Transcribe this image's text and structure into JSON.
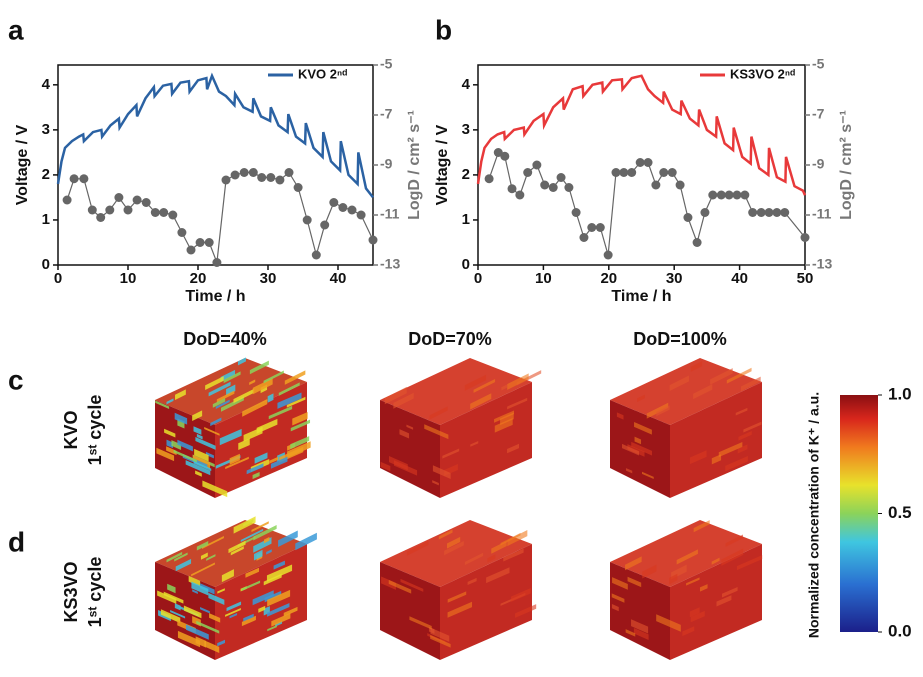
{
  "chart_data": [
    {
      "type": "line",
      "panel_label": "a",
      "xlabel": "Time / h",
      "ylabel": "Voltage / V",
      "y2label": "LogD / cm² s⁻¹",
      "xlim": [
        0,
        45
      ],
      "xticks": [
        0,
        10,
        20,
        30,
        40
      ],
      "ylim": [
        0,
        4.44
      ],
      "yticks": [
        0,
        1,
        2,
        3,
        4
      ],
      "y2lim": [
        -5,
        -13
      ],
      "y2ticks": [
        -5,
        -7,
        -9,
        -11,
        -13
      ],
      "series": [
        {
          "name": "KVO 2ⁿᵈ",
          "type": "line",
          "color": "#2b62a3",
          "x": [
            0,
            0.5,
            1,
            2,
            3,
            3.6,
            3.7,
            5,
            6.2,
            6.3,
            7.5,
            8.7,
            8.8,
            10,
            11.2,
            11.3,
            12.5,
            13.7,
            13.8,
            15,
            16.2,
            16.3,
            17.5,
            18.7,
            18.8,
            20,
            21.2,
            21.3,
            22,
            23,
            24,
            25.2,
            25.3,
            26.5,
            27.8,
            27.9,
            29,
            30.3,
            30.4,
            31.5,
            32.8,
            32.9,
            34,
            35.3,
            35.4,
            36.5,
            37.8,
            37.9,
            39,
            40.3,
            40.4,
            41.5,
            42.8,
            42.9,
            44,
            45
          ],
          "values": [
            1.8,
            2.3,
            2.6,
            2.75,
            2.85,
            2.9,
            2.75,
            2.95,
            3.0,
            2.85,
            3.1,
            3.25,
            3.05,
            3.35,
            3.55,
            3.3,
            3.7,
            3.95,
            3.75,
            3.98,
            4.02,
            3.8,
            4.05,
            4.08,
            3.85,
            4.1,
            4.15,
            3.9,
            4.2,
            3.85,
            3.75,
            3.55,
            3.8,
            3.5,
            3.4,
            3.7,
            3.3,
            3.2,
            3.5,
            3.1,
            2.95,
            3.35,
            2.85,
            2.7,
            3.15,
            2.6,
            2.4,
            2.95,
            2.3,
            2.1,
            2.75,
            2.0,
            1.8,
            2.5,
            1.7,
            1.5
          ]
        },
        {
          "type": "scatter",
          "axis": "y2",
          "color": "#666666",
          "x": [
            1.3,
            2.3,
            3.7,
            4.9,
            6.1,
            7.4,
            8.7,
            10,
            11.3,
            12.6,
            13.9,
            15.1,
            16.4,
            17.7,
            19,
            20.3,
            21.6,
            22.7,
            24,
            25.3,
            26.6,
            27.9,
            29.1,
            30.4,
            31.7,
            33,
            34.3,
            35.6,
            36.9,
            38.1,
            39.4,
            40.7,
            42,
            43.3,
            45
          ],
          "values": [
            -10.4,
            -9.55,
            -9.55,
            -10.8,
            -11.1,
            -10.8,
            -10.3,
            -10.8,
            -10.4,
            -10.5,
            -10.9,
            -10.9,
            -11,
            -11.7,
            -12.4,
            -12.1,
            -12.1,
            -12.9,
            -9.6,
            -9.4,
            -9.3,
            -9.3,
            -9.5,
            -9.5,
            -9.6,
            -9.3,
            -9.9,
            -11.2,
            -12.6,
            -11.4,
            -10.5,
            -10.7,
            -10.8,
            -11,
            -12
          ]
        }
      ]
    },
    {
      "type": "line",
      "panel_label": "b",
      "xlabel": "Time / h",
      "ylabel": "Voltage / V",
      "y2label": "LogD / cm² s⁻¹",
      "xlim": [
        0,
        50
      ],
      "xticks": [
        0,
        10,
        20,
        30,
        40,
        50
      ],
      "ylim": [
        0,
        4.44
      ],
      "yticks": [
        0,
        1,
        2,
        3,
        4
      ],
      "y2lim": [
        -5,
        -13
      ],
      "y2ticks": [
        -5,
        -7,
        -9,
        -11,
        -13
      ],
      "series": [
        {
          "name": "KS3VO 2ⁿᵈ",
          "type": "line",
          "color": "#e8393a",
          "x": [
            0,
            0.5,
            1,
            2,
            3,
            4,
            4.1,
            5.5,
            7,
            7.1,
            8.5,
            10,
            10.1,
            11.5,
            13,
            13.1,
            14.5,
            16,
            16.1,
            17.5,
            19,
            19.1,
            20.5,
            22,
            22.1,
            23.5,
            25,
            26,
            27,
            28.3,
            28.4,
            29.7,
            31,
            31.1,
            32.4,
            33.7,
            33.8,
            35,
            36.4,
            36.5,
            37.7,
            39,
            39.1,
            40.4,
            41.7,
            41.8,
            43,
            44.4,
            44.5,
            45.7,
            47,
            47.1,
            48.4,
            49.7,
            50
          ],
          "values": [
            1.8,
            2.3,
            2.6,
            2.8,
            2.9,
            2.95,
            2.8,
            3.0,
            3.05,
            2.9,
            3.2,
            3.35,
            3.1,
            3.5,
            3.7,
            3.45,
            3.9,
            3.97,
            3.75,
            4.0,
            4.05,
            3.85,
            4.1,
            4.12,
            3.9,
            4.15,
            4.2,
            3.9,
            3.75,
            3.6,
            3.85,
            3.45,
            3.35,
            3.65,
            3.25,
            3.1,
            3.45,
            3.0,
            2.85,
            3.3,
            2.7,
            2.55,
            3.05,
            2.4,
            2.25,
            2.85,
            2.15,
            2.0,
            2.6,
            1.95,
            1.85,
            2.4,
            1.75,
            1.65,
            1.55
          ]
        },
        {
          "type": "scatter",
          "axis": "y2",
          "color": "#666666",
          "x": [
            1.7,
            3.1,
            4.1,
            5.2,
            6.4,
            7.6,
            9,
            10.2,
            11.5,
            12.7,
            13.9,
            15,
            16.2,
            17.4,
            18.7,
            19.9,
            21.1,
            22.3,
            23.5,
            24.8,
            26,
            27.2,
            28.4,
            29.7,
            30.9,
            32.1,
            33.5,
            34.7,
            35.9,
            37.2,
            38.4,
            39.6,
            40.8,
            42,
            43.3,
            44.5,
            45.7,
            46.9,
            50
          ],
          "values": [
            -9.55,
            -8.5,
            -8.65,
            -9.95,
            -10.2,
            -9.3,
            -9,
            -9.8,
            -9.9,
            -9.5,
            -9.9,
            -10.9,
            -11.9,
            -11.5,
            -11.5,
            -12.6,
            -9.3,
            -9.3,
            -9.3,
            -8.9,
            -8.9,
            -9.8,
            -9.3,
            -9.3,
            -9.8,
            -11.1,
            -12.1,
            -10.9,
            -10.2,
            -10.2,
            -10.2,
            -10.2,
            -10.2,
            -10.9,
            -10.9,
            -10.9,
            -10.9,
            -10.9,
            -11.9
          ]
        }
      ]
    }
  ],
  "renderings": {
    "columns": [
      "DoD=40%",
      "DoD=70%",
      "DoD=100%"
    ],
    "rows": [
      {
        "panel": "c",
        "label": "KVO",
        "sublabel": "1ˢᵗ cycle"
      },
      {
        "panel": "d",
        "label": "KS3VO",
        "sublabel": "1ˢᵗ cycle"
      }
    ]
  },
  "colorbar": {
    "label": "Normalized concentration of K⁺ / a.u.",
    "lim": [
      0,
      1
    ],
    "ticks": [
      {
        "value": 0,
        "label": "0.0"
      },
      0.5,
      {
        "value": 1,
        "label": "1.0"
      }
    ]
  }
}
